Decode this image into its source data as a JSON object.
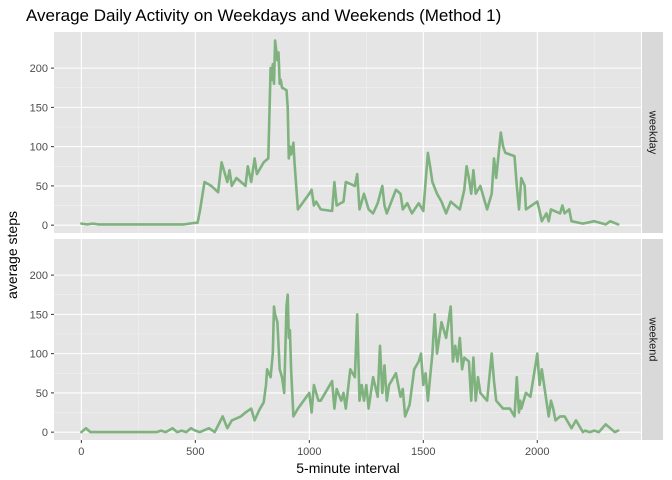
{
  "chart_data": {
    "type": "line",
    "title": "Average Daily Activity on Weekdays and Weekends (Method 1)",
    "xlabel": "5-minute interval",
    "ylabel": "average steps",
    "xlim": [
      -120,
      2455
    ],
    "ylim": [
      -10,
      246
    ],
    "x_ticks": [
      0,
      500,
      1000,
      1500,
      2000
    ],
    "y_ticks": [
      0,
      50,
      100,
      150,
      200
    ],
    "line_color": "#7fb27f",
    "grid": true,
    "facets": [
      {
        "label": "weekday",
        "points": [
          [
            0,
            2
          ],
          [
            25,
            1
          ],
          [
            50,
            2
          ],
          [
            75,
            1
          ],
          [
            100,
            1
          ],
          [
            200,
            1
          ],
          [
            300,
            1
          ],
          [
            350,
            1
          ],
          [
            400,
            1
          ],
          [
            450,
            1
          ],
          [
            500,
            3
          ],
          [
            510,
            3
          ],
          [
            520,
            18
          ],
          [
            540,
            55
          ],
          [
            570,
            50
          ],
          [
            600,
            42
          ],
          [
            615,
            80
          ],
          [
            640,
            55
          ],
          [
            650,
            70
          ],
          [
            660,
            50
          ],
          [
            680,
            60
          ],
          [
            720,
            50
          ],
          [
            730,
            75
          ],
          [
            745,
            55
          ],
          [
            760,
            85
          ],
          [
            770,
            65
          ],
          [
            800,
            80
          ],
          [
            820,
            85
          ],
          [
            830,
            200
          ],
          [
            835,
            185
          ],
          [
            840,
            205
          ],
          [
            845,
            180
          ],
          [
            850,
            235
          ],
          [
            860,
            210
          ],
          [
            865,
            220
          ],
          [
            870,
            180
          ],
          [
            875,
            185
          ],
          [
            880,
            175
          ],
          [
            900,
            172
          ],
          [
            905,
            150
          ],
          [
            910,
            85
          ],
          [
            915,
            100
          ],
          [
            920,
            90
          ],
          [
            930,
            105
          ],
          [
            935,
            80
          ],
          [
            950,
            20
          ],
          [
            1000,
            40
          ],
          [
            1010,
            45
          ],
          [
            1020,
            25
          ],
          [
            1030,
            30
          ],
          [
            1050,
            20
          ],
          [
            1100,
            18
          ],
          [
            1110,
            55
          ],
          [
            1120,
            25
          ],
          [
            1150,
            30
          ],
          [
            1160,
            55
          ],
          [
            1200,
            50
          ],
          [
            1210,
            65
          ],
          [
            1220,
            20
          ],
          [
            1240,
            40
          ],
          [
            1260,
            20
          ],
          [
            1280,
            15
          ],
          [
            1300,
            28
          ],
          [
            1320,
            50
          ],
          [
            1330,
            25
          ],
          [
            1340,
            15
          ],
          [
            1380,
            45
          ],
          [
            1400,
            40
          ],
          [
            1410,
            20
          ],
          [
            1430,
            28
          ],
          [
            1450,
            15
          ],
          [
            1480,
            28
          ],
          [
            1500,
            18
          ],
          [
            1520,
            92
          ],
          [
            1530,
            75
          ],
          [
            1540,
            55
          ],
          [
            1560,
            40
          ],
          [
            1580,
            30
          ],
          [
            1600,
            15
          ],
          [
            1620,
            30
          ],
          [
            1640,
            25
          ],
          [
            1660,
            20
          ],
          [
            1680,
            45
          ],
          [
            1690,
            75
          ],
          [
            1700,
            60
          ],
          [
            1710,
            40
          ],
          [
            1720,
            70
          ],
          [
            1730,
            40
          ],
          [
            1750,
            50
          ],
          [
            1780,
            20
          ],
          [
            1800,
            40
          ],
          [
            1810,
            85
          ],
          [
            1820,
            60
          ],
          [
            1840,
            118
          ],
          [
            1850,
            100
          ],
          [
            1860,
            92
          ],
          [
            1900,
            88
          ],
          [
            1910,
            50
          ],
          [
            1920,
            20
          ],
          [
            1925,
            40
          ],
          [
            1930,
            60
          ],
          [
            1945,
            50
          ],
          [
            1950,
            20
          ],
          [
            2000,
            30
          ],
          [
            2010,
            18
          ],
          [
            2020,
            5
          ],
          [
            2040,
            15
          ],
          [
            2050,
            5
          ],
          [
            2060,
            20
          ],
          [
            2100,
            15
          ],
          [
            2110,
            25
          ],
          [
            2120,
            15
          ],
          [
            2140,
            20
          ],
          [
            2150,
            5
          ],
          [
            2200,
            2
          ],
          [
            2250,
            5
          ],
          [
            2300,
            1
          ],
          [
            2320,
            5
          ],
          [
            2355,
            1
          ]
        ]
      },
      {
        "label": "weekend",
        "points": [
          [
            0,
            0
          ],
          [
            20,
            5
          ],
          [
            40,
            0
          ],
          [
            100,
            0
          ],
          [
            200,
            0
          ],
          [
            300,
            0
          ],
          [
            330,
            0
          ],
          [
            350,
            2
          ],
          [
            370,
            0
          ],
          [
            400,
            5
          ],
          [
            420,
            0
          ],
          [
            440,
            2
          ],
          [
            460,
            0
          ],
          [
            480,
            5
          ],
          [
            500,
            2
          ],
          [
            520,
            0
          ],
          [
            560,
            5
          ],
          [
            585,
            0
          ],
          [
            620,
            20
          ],
          [
            640,
            5
          ],
          [
            660,
            15
          ],
          [
            700,
            20
          ],
          [
            720,
            25
          ],
          [
            745,
            30
          ],
          [
            760,
            15
          ],
          [
            780,
            28
          ],
          [
            800,
            38
          ],
          [
            810,
            60
          ],
          [
            815,
            80
          ],
          [
            830,
            70
          ],
          [
            840,
            100
          ],
          [
            845,
            160
          ],
          [
            850,
            150
          ],
          [
            860,
            140
          ],
          [
            870,
            80
          ],
          [
            880,
            70
          ],
          [
            890,
            50
          ],
          [
            900,
            160
          ],
          [
            905,
            175
          ],
          [
            910,
            120
          ],
          [
            915,
            130
          ],
          [
            920,
            80
          ],
          [
            930,
            20
          ],
          [
            950,
            30
          ],
          [
            1000,
            50
          ],
          [
            1010,
            25
          ],
          [
            1020,
            60
          ],
          [
            1040,
            40
          ],
          [
            1050,
            40
          ],
          [
            1100,
            65
          ],
          [
            1110,
            30
          ],
          [
            1120,
            55
          ],
          [
            1140,
            40
          ],
          [
            1150,
            50
          ],
          [
            1160,
            30
          ],
          [
            1180,
            80
          ],
          [
            1200,
            70
          ],
          [
            1210,
            150
          ],
          [
            1220,
            40
          ],
          [
            1230,
            60
          ],
          [
            1240,
            40
          ],
          [
            1250,
            60
          ],
          [
            1260,
            30
          ],
          [
            1280,
            70
          ],
          [
            1300,
            45
          ],
          [
            1310,
            110
          ],
          [
            1320,
            50
          ],
          [
            1330,
            85
          ],
          [
            1340,
            40
          ],
          [
            1350,
            60
          ],
          [
            1380,
            75
          ],
          [
            1400,
            45
          ],
          [
            1410,
            55
          ],
          [
            1420,
            20
          ],
          [
            1440,
            35
          ],
          [
            1460,
            80
          ],
          [
            1480,
            90
          ],
          [
            1490,
            100
          ],
          [
            1500,
            60
          ],
          [
            1510,
            75
          ],
          [
            1520,
            40
          ],
          [
            1530,
            70
          ],
          [
            1540,
            100
          ],
          [
            1550,
            150
          ],
          [
            1560,
            100
          ],
          [
            1580,
            140
          ],
          [
            1600,
            120
          ],
          [
            1620,
            160
          ],
          [
            1630,
            90
          ],
          [
            1640,
            110
          ],
          [
            1650,
            90
          ],
          [
            1660,
            120
          ],
          [
            1670,
            80
          ],
          [
            1680,
            95
          ],
          [
            1700,
            90
          ],
          [
            1710,
            40
          ],
          [
            1720,
            95
          ],
          [
            1730,
            40
          ],
          [
            1740,
            70
          ],
          [
            1750,
            50
          ],
          [
            1780,
            40
          ],
          [
            1800,
            100
          ],
          [
            1810,
            65
          ],
          [
            1820,
            40
          ],
          [
            1850,
            30
          ],
          [
            1880,
            30
          ],
          [
            1900,
            20
          ],
          [
            1910,
            70
          ],
          [
            1920,
            25
          ],
          [
            1925,
            40
          ],
          [
            1930,
            30
          ],
          [
            1950,
            50
          ],
          [
            1970,
            45
          ],
          [
            2000,
            100
          ],
          [
            2010,
            60
          ],
          [
            2020,
            80
          ],
          [
            2030,
            60
          ],
          [
            2050,
            20
          ],
          [
            2060,
            40
          ],
          [
            2070,
            30
          ],
          [
            2080,
            15
          ],
          [
            2100,
            20
          ],
          [
            2120,
            20
          ],
          [
            2150,
            5
          ],
          [
            2170,
            15
          ],
          [
            2200,
            0
          ],
          [
            2210,
            2
          ],
          [
            2230,
            0
          ],
          [
            2250,
            2
          ],
          [
            2270,
            0
          ],
          [
            2300,
            10
          ],
          [
            2320,
            5
          ],
          [
            2340,
            0
          ],
          [
            2355,
            2
          ]
        ]
      }
    ]
  }
}
